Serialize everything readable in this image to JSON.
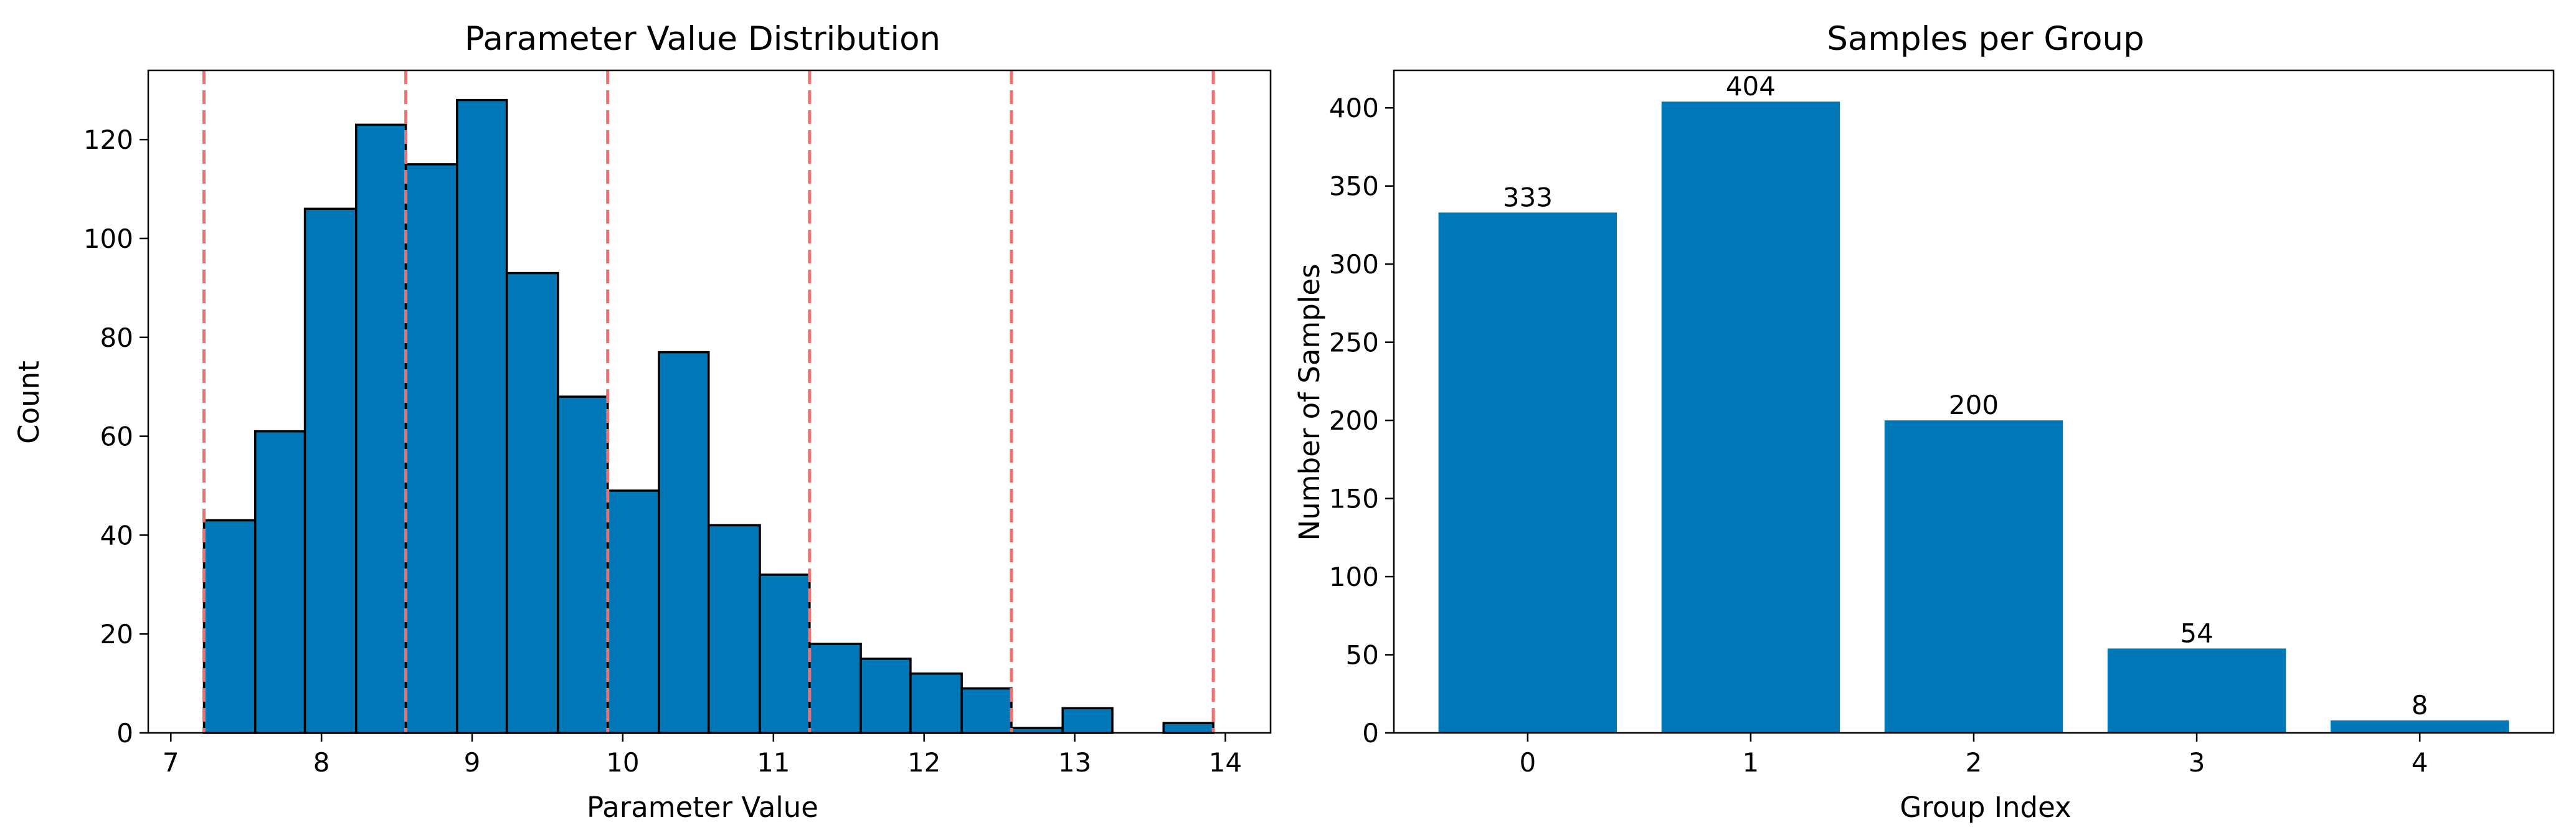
{
  "colors": {
    "bar_fill": "#0077b6",
    "hist_edge": "#000000",
    "divider_line": "#f07070",
    "axis": "#000000",
    "background": "#ffffff"
  },
  "chart_data": [
    {
      "type": "bar",
      "subtype": "histogram",
      "title": "Parameter Value Distribution",
      "xlabel": "Parameter Value",
      "ylabel": "Count",
      "xlim": [
        6.85,
        14.3
      ],
      "ylim": [
        0,
        134
      ],
      "xticks": [
        7,
        8,
        9,
        10,
        11,
        12,
        13,
        14
      ],
      "yticks": [
        0,
        20,
        40,
        60,
        80,
        100,
        120
      ],
      "bin_edges": [
        7.22,
        7.56,
        7.89,
        8.23,
        8.56,
        8.9,
        9.23,
        9.57,
        9.9,
        10.24,
        10.57,
        10.91,
        11.24,
        11.58,
        11.91,
        12.25,
        12.58,
        12.92,
        13.25,
        13.59,
        13.92
      ],
      "counts": [
        43,
        61,
        106,
        123,
        115,
        128,
        93,
        68,
        49,
        77,
        42,
        32,
        18,
        15,
        12,
        9,
        1,
        5,
        0,
        2
      ],
      "group_boundaries": [
        7.22,
        8.56,
        9.9,
        11.24,
        12.58,
        13.92
      ],
      "grid": false,
      "legend": "none"
    },
    {
      "type": "bar",
      "title": "Samples per Group",
      "xlabel": "Group Index",
      "ylabel": "Number of Samples",
      "categories": [
        "0",
        "1",
        "2",
        "3",
        "4"
      ],
      "values": [
        333,
        404,
        200,
        54,
        8
      ],
      "data_labels": [
        "333",
        "404",
        "200",
        "54",
        "8"
      ],
      "ylim": [
        0,
        424
      ],
      "yticks": [
        0,
        50,
        100,
        150,
        200,
        250,
        300,
        350,
        400
      ],
      "grid": false,
      "legend": "none"
    }
  ]
}
